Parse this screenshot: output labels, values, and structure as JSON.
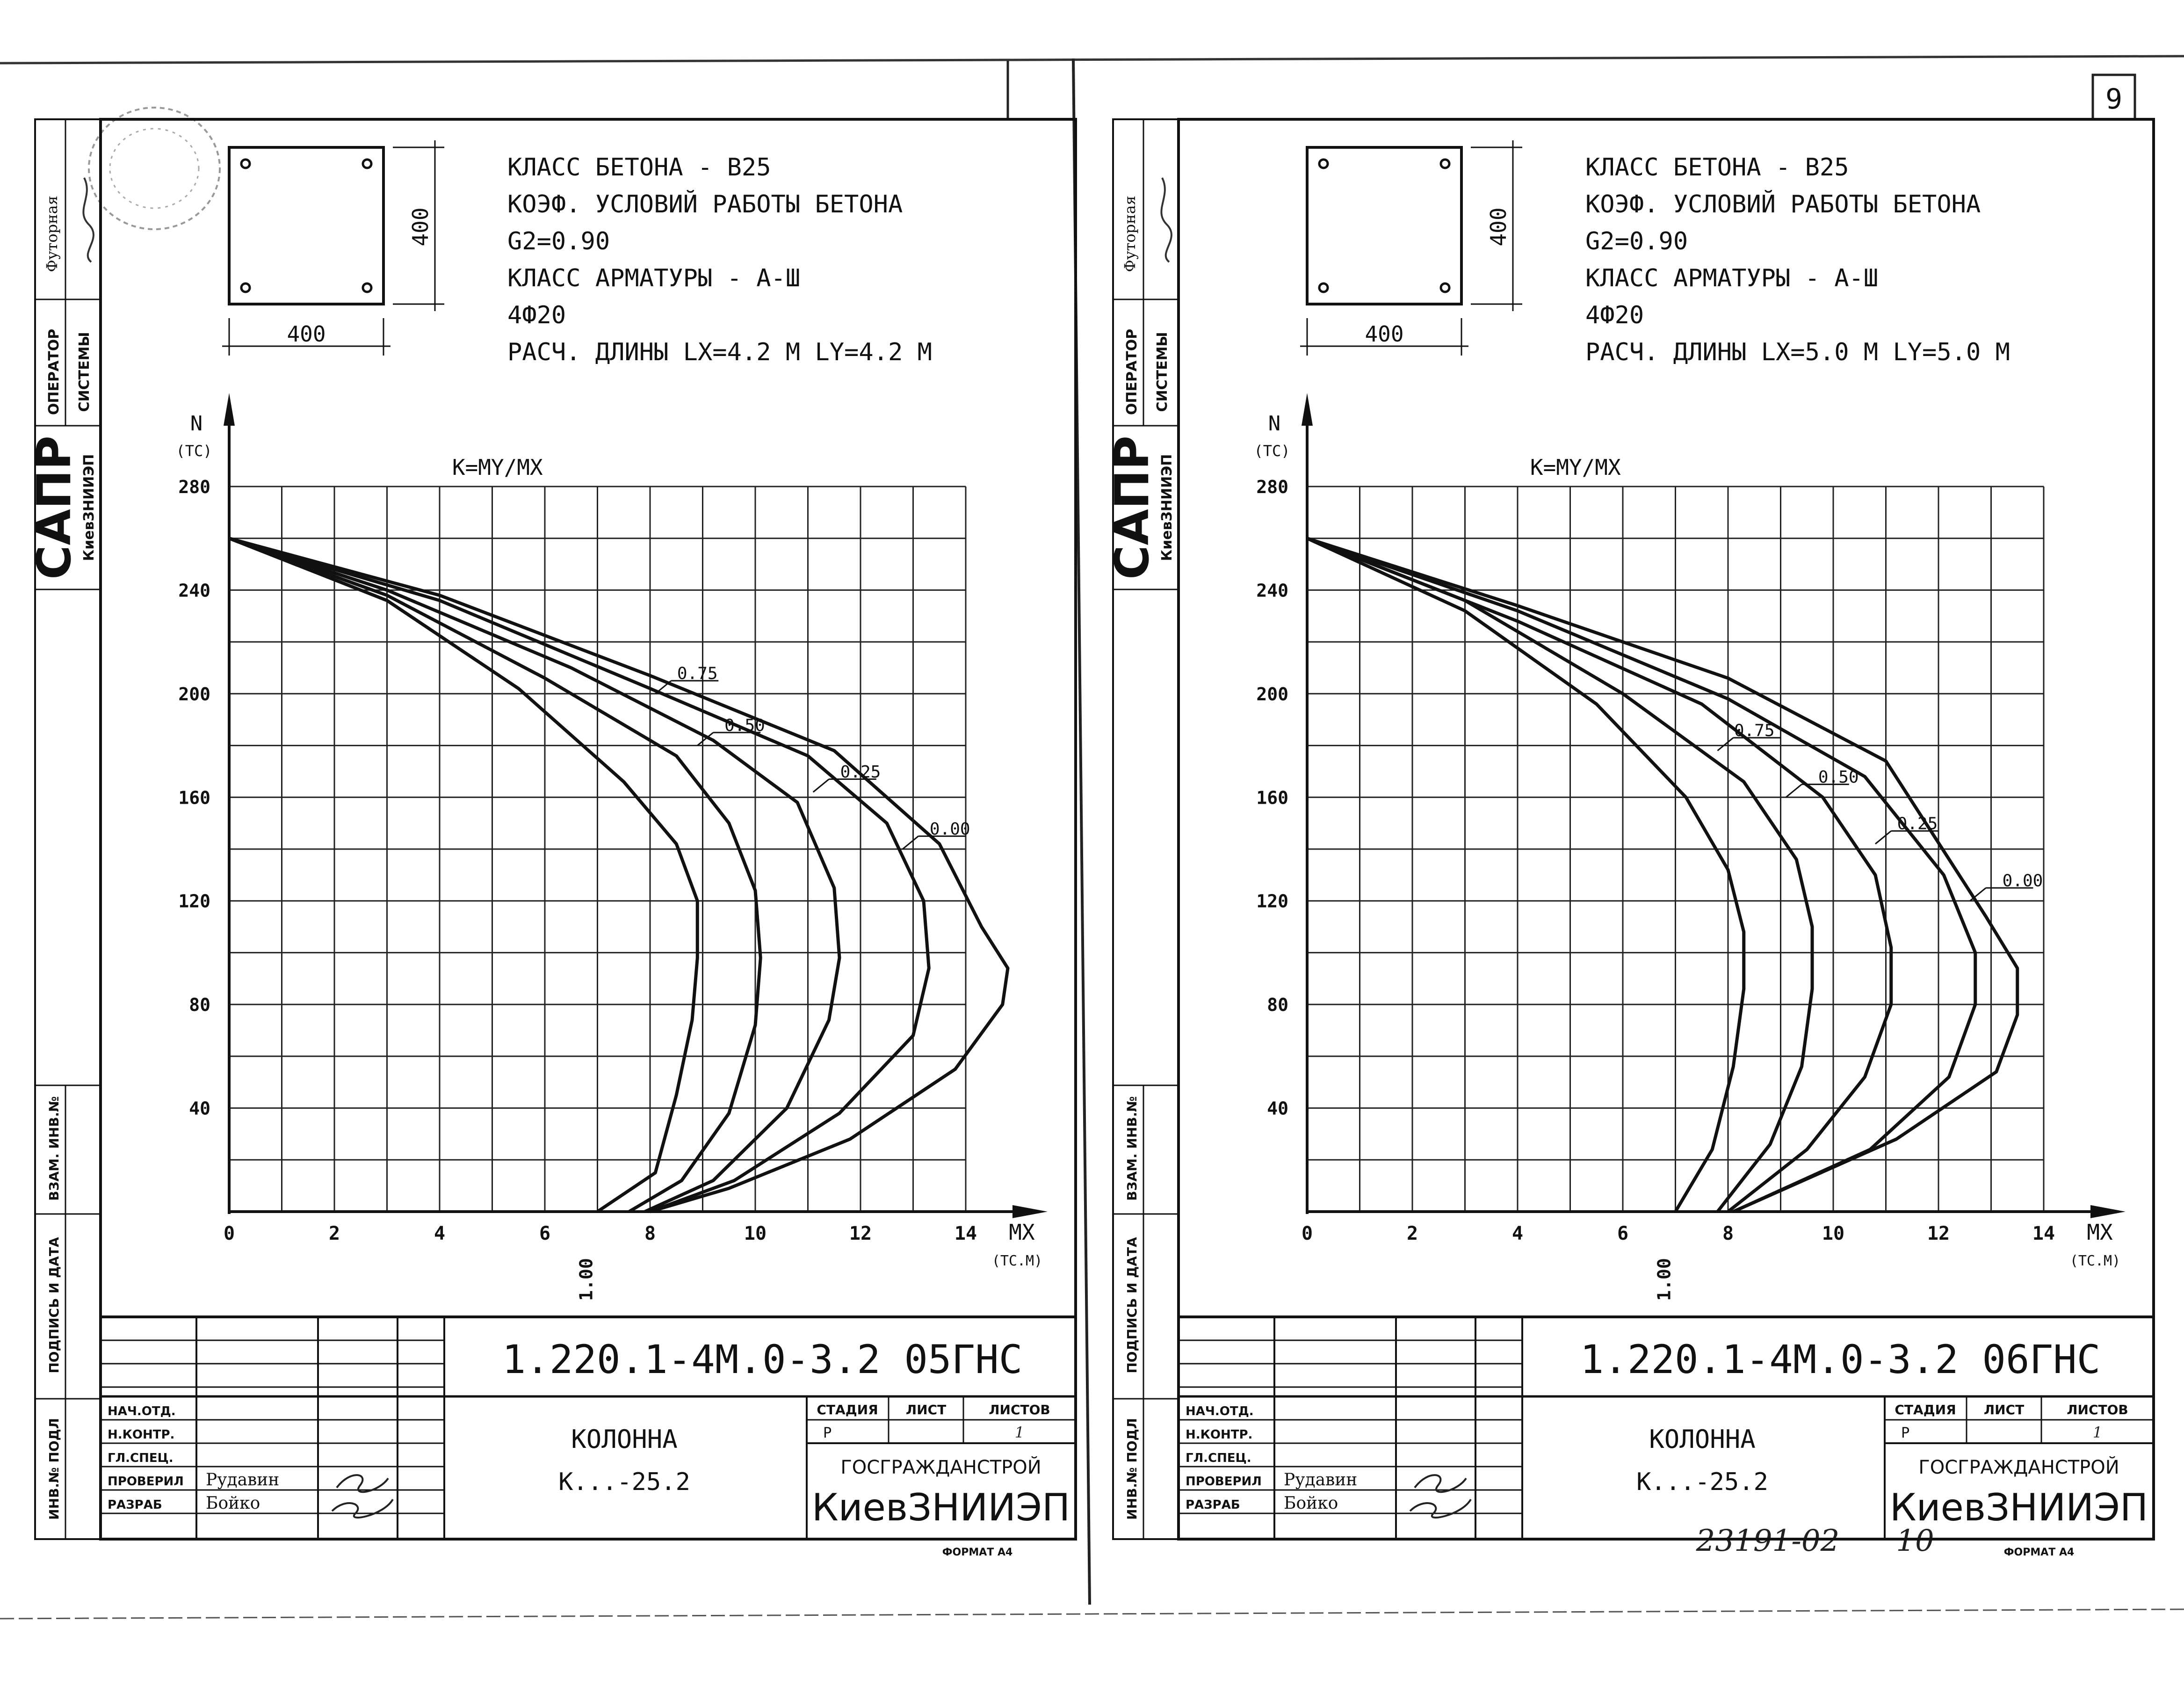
{
  "global": {
    "page_number": "9",
    "archive_number": "23191-02",
    "archive_sheet": "10",
    "format": "ФОРМАТ А4"
  },
  "sheets": [
    {
      "section": {
        "width_label": "400",
        "height_label": "400"
      },
      "specs": [
        "КЛАСС БЕТОНА - В25",
        "КОЭФ. УСЛОВИЙ РАБОТЫ БЕТОНА",
        "G2=0.90",
        "КЛАСС АРМАТУРЫ - А-Ш",
        "4Ф20",
        "РАСЧ. ДЛИНЫ  LX=4.2 М  LY=4.2 М"
      ],
      "left_panel": {
        "futornaya": "Футорная",
        "operator": "ОПЕРАТОР",
        "systems": "СИСТЕМЫ",
        "sapr": "САПР",
        "org_short": "КиевЗНИИЭП",
        "vzam": "ВЗАМ. ИНВ.№",
        "podpis": "ПОДПИСЬ И ДАТА",
        "inv": "ИНВ.№ ПОДЛ"
      },
      "chart_data": {
        "type": "line",
        "title": "K=MY/MX",
        "ylabel_top": "N",
        "ylabel_unit": "(TC)",
        "xlabel": "MX",
        "xlabel_unit": "(TC.M)",
        "xlim": [
          0,
          14
        ],
        "ylim": [
          0,
          280
        ],
        "xticks": [
          0,
          2,
          4,
          6,
          8,
          10,
          12,
          14
        ],
        "yticks": [
          40,
          80,
          120,
          160,
          200,
          240,
          280
        ],
        "grid": true,
        "bottom_note": "1.00",
        "series": [
          {
            "name": "1.00",
            "points": [
              [
                0,
                260
              ],
              [
                3,
                236
              ],
              [
                5.5,
                202
              ],
              [
                7.5,
                166
              ],
              [
                8.5,
                142
              ],
              [
                8.9,
                120
              ],
              [
                8.9,
                98
              ],
              [
                8.8,
                74
              ],
              [
                8.5,
                45
              ],
              [
                8.1,
                15
              ],
              [
                7,
                0
              ]
            ]
          },
          {
            "name": "0.75",
            "points": [
              [
                0,
                260
              ],
              [
                3,
                238
              ],
              [
                6,
                206
              ],
              [
                8.5,
                176
              ],
              [
                9.5,
                150
              ],
              [
                10,
                124
              ],
              [
                10.1,
                98
              ],
              [
                10,
                72
              ],
              [
                9.5,
                38
              ],
              [
                8.6,
                12
              ],
              [
                7.6,
                0
              ]
            ]
          },
          {
            "name": "0.50",
            "points": [
              [
                0,
                260
              ],
              [
                3,
                240
              ],
              [
                6.5,
                210
              ],
              [
                9.2,
                182
              ],
              [
                10.8,
                158
              ],
              [
                11.5,
                125
              ],
              [
                11.6,
                98
              ],
              [
                11.4,
                74
              ],
              [
                10.6,
                40
              ],
              [
                9.2,
                12
              ],
              [
                7.9,
                0
              ]
            ]
          },
          {
            "name": "0.25",
            "points": [
              [
                0,
                260
              ],
              [
                4,
                236
              ],
              [
                8,
                202
              ],
              [
                11,
                176
              ],
              [
                12.5,
                150
              ],
              [
                13.2,
                120
              ],
              [
                13.3,
                94
              ],
              [
                13,
                68
              ],
              [
                11.6,
                38
              ],
              [
                9.6,
                12
              ],
              [
                8,
                0
              ]
            ]
          },
          {
            "name": "0.00",
            "points": [
              [
                0,
                260
              ],
              [
                4,
                238
              ],
              [
                8,
                207
              ],
              [
                11.5,
                178
              ],
              [
                13.5,
                142
              ],
              [
                14.3,
                110
              ],
              [
                14.8,
                94
              ],
              [
                14.7,
                80
              ],
              [
                13.8,
                55
              ],
              [
                11.8,
                28
              ],
              [
                9.5,
                9
              ],
              [
                8,
                0
              ]
            ]
          }
        ]
      },
      "title_block": {
        "doc_code": "1.220.1-4М.0-3.2 05ГНС",
        "roles": [
          "НАЧ.ОТД.",
          "Н.КОНТР.",
          "ГЛ.СПЕЦ.",
          "ПРОВЕРИЛ",
          "РАЗРАБ"
        ],
        "names": [
          "",
          "",
          "",
          "Рудавин",
          "Бойко"
        ],
        "object_name": "КОЛОННА",
        "object_mark": "К...-25.2",
        "stage_header": "СТАДИЯ",
        "sheet_header": "ЛИСТ",
        "sheets_header": "ЛИСТОВ",
        "stage": "Р",
        "sheets_count": "1",
        "org1": "ГОСГРАЖДАНСТРОЙ",
        "org2": "КиевЗНИИЭП"
      }
    },
    {
      "section": {
        "width_label": "400",
        "height_label": "400"
      },
      "specs": [
        "КЛАСС БЕТОНА - В25",
        "КОЭФ. УСЛОВИЙ РАБОТЫ БЕТОНА",
        "G2=0.90",
        "КЛАСС АРМАТУРЫ - А-Ш",
        "4Ф20",
        "РАСЧ. ДЛИНЫ  LX=5.0 М  LY=5.0 М"
      ],
      "left_panel": {
        "futornaya": "Футорная",
        "operator": "ОПЕРАТОР",
        "systems": "СИСТЕМЫ",
        "sapr": "САПР",
        "org_short": "КиевЗНИИЭП",
        "vzam": "ВЗАМ. ИНВ.№",
        "podpis": "ПОДПИСЬ И ДАТА",
        "inv": "ИНВ.№ ПОДЛ"
      },
      "chart_data": {
        "type": "line",
        "title": "K=MY/MX",
        "ylabel_top": "N",
        "ylabel_unit": "(TC)",
        "xlabel": "MX",
        "xlabel_unit": "(TC.M)",
        "xlim": [
          0,
          14
        ],
        "ylim": [
          0,
          280
        ],
        "xticks": [
          0,
          2,
          4,
          6,
          8,
          10,
          12,
          14
        ],
        "yticks": [
          40,
          80,
          120,
          160,
          200,
          240,
          280
        ],
        "grid": true,
        "bottom_note": "1.00",
        "series": [
          {
            "name": "1.00",
            "points": [
              [
                0,
                260
              ],
              [
                3,
                232
              ],
              [
                5.5,
                196
              ],
              [
                7.2,
                160
              ],
              [
                8,
                132
              ],
              [
                8.3,
                108
              ],
              [
                8.3,
                86
              ],
              [
                8.1,
                56
              ],
              [
                7.7,
                24
              ],
              [
                7,
                0
              ]
            ]
          },
          {
            "name": "0.75",
            "points": [
              [
                0,
                260
              ],
              [
                3,
                236
              ],
              [
                6,
                200
              ],
              [
                8.3,
                166
              ],
              [
                9.3,
                136
              ],
              [
                9.6,
                110
              ],
              [
                9.6,
                86
              ],
              [
                9.4,
                56
              ],
              [
                8.8,
                26
              ],
              [
                7.8,
                0
              ]
            ]
          },
          {
            "name": "0.50",
            "points": [
              [
                0,
                260
              ],
              [
                4,
                228
              ],
              [
                7.5,
                196
              ],
              [
                9.8,
                160
              ],
              [
                10.8,
                130
              ],
              [
                11.1,
                102
              ],
              [
                11.1,
                80
              ],
              [
                10.6,
                52
              ],
              [
                9.5,
                24
              ],
              [
                8,
                0
              ]
            ]
          },
          {
            "name": "0.25",
            "points": [
              [
                0,
                260
              ],
              [
                4,
                232
              ],
              [
                8,
                198
              ],
              [
                10.6,
                168
              ],
              [
                12.1,
                130
              ],
              [
                12.7,
                100
              ],
              [
                12.7,
                80
              ],
              [
                12.2,
                52
              ],
              [
                10.7,
                24
              ],
              [
                8.1,
                0
              ]
            ]
          },
          {
            "name": "0.00",
            "points": [
              [
                0,
                260
              ],
              [
                4,
                234
              ],
              [
                8,
                206
              ],
              [
                11,
                174
              ],
              [
                12.9,
                114
              ],
              [
                13.5,
                94
              ],
              [
                13.5,
                76
              ],
              [
                13.1,
                54
              ],
              [
                11.2,
                28
              ],
              [
                8.1,
                0
              ]
            ]
          }
        ]
      },
      "title_block": {
        "doc_code": "1.220.1-4М.0-3.2 06ГНС",
        "roles": [
          "НАЧ.ОТД.",
          "Н.КОНТР.",
          "ГЛ.СПЕЦ.",
          "ПРОВЕРИЛ",
          "РАЗРАБ"
        ],
        "names": [
          "",
          "",
          "",
          "Рудавин",
          "Бойко"
        ],
        "object_name": "КОЛОННА",
        "object_mark": "К...-25.2",
        "stage_header": "СТАДИЯ",
        "sheet_header": "ЛИСТ",
        "sheets_header": "ЛИСТОВ",
        "stage": "Р",
        "sheets_count": "1",
        "org1": "ГОСГРАЖДАНСТРОЙ",
        "org2": "КиевЗНИИЭП"
      }
    }
  ]
}
